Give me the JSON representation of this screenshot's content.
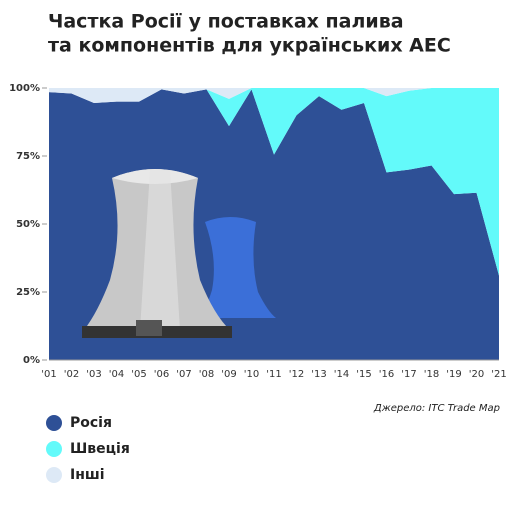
{
  "chart_data": {
    "type": "stacked-area",
    "title": [
      "Частка Росії у поставках палива",
      "та компонентів для українських АЕС"
    ],
    "categories": [
      "'01",
      "'02",
      "'03",
      "'04",
      "'05",
      "'06",
      "'07",
      "'08",
      "'09",
      "'10",
      "'11",
      "'12",
      "'13",
      "'14",
      "'15",
      "'16",
      "'17",
      "'18",
      "'19",
      "'20",
      "'21"
    ],
    "series": [
      {
        "name": "Росія",
        "color": "#2e5096",
        "values": [
          98.5,
          98,
          94.5,
          95,
          95,
          99.5,
          98,
          99.5,
          86,
          99.5,
          75.5,
          90,
          97,
          92,
          94.5,
          69,
          70,
          71.5,
          61,
          61.5,
          31
        ]
      },
      {
        "name": "Швеція",
        "color": "#63fafa",
        "values": [
          0,
          0,
          0,
          0,
          0,
          0,
          0,
          0,
          10,
          0.5,
          24.5,
          10,
          3,
          8,
          5.5,
          28,
          29,
          28.5,
          39,
          38.5,
          69
        ]
      },
      {
        "name": "Інші",
        "color": "#dde9f6",
        "values": [
          1.5,
          2,
          5.5,
          5,
          5,
          0.5,
          2,
          0.5,
          4,
          0,
          0,
          0,
          0,
          0,
          0,
          3,
          1,
          0,
          0,
          0,
          0
        ]
      }
    ],
    "ylim": [
      0,
      100
    ],
    "yticks": [
      {
        "value": 0,
        "label": "0%"
      },
      {
        "value": 25,
        "label": "25%"
      },
      {
        "value": 50,
        "label": "50%"
      },
      {
        "value": 75,
        "label": "75%"
      },
      {
        "value": 100,
        "label": "100%"
      }
    ],
    "grid": false,
    "source": "Джерело: ITC Trade Map"
  }
}
